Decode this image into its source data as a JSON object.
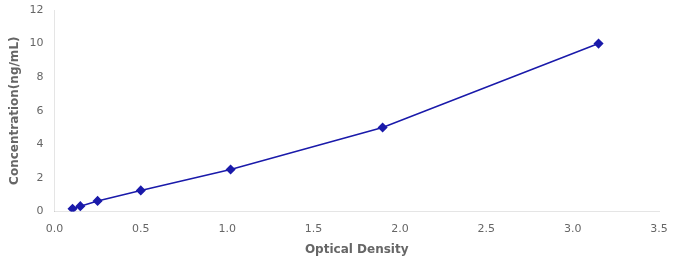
{
  "chart_data": {
    "type": "line",
    "x": [
      0.105,
      0.15,
      0.25,
      0.5,
      1.02,
      1.9,
      3.15
    ],
    "values": [
      0.156,
      0.312,
      0.625,
      1.25,
      2.5,
      5.0,
      10.0
    ],
    "color": "#1a1aaa",
    "marker": "diamond",
    "xlabel": "Optical Density",
    "ylabel": "Concentration(ng/mL)",
    "xlim": [
      0,
      3.5
    ],
    "ylim": [
      0,
      12
    ],
    "xticks": [
      {
        "value": 0,
        "label": "0.0"
      },
      0.5,
      {
        "value": 1,
        "label": "1.0"
      },
      1.5,
      {
        "value": 2,
        "label": "2.0"
      },
      2.5,
      {
        "value": 3,
        "label": "3.0"
      },
      3.5
    ],
    "yticks": [
      0,
      2,
      4,
      6,
      8,
      10,
      12
    ],
    "grid": false
  }
}
